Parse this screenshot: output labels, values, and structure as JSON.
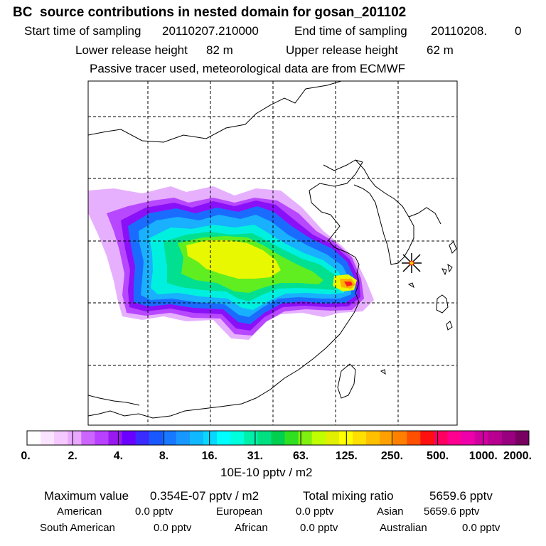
{
  "header": {
    "title": "BC  source contributions in nested domain for gosan_201102",
    "start_label": "Start time of sampling",
    "start_value": "20110207.210000",
    "end_label": "End time of sampling",
    "end_value": "20110208.",
    "end_extra": "0",
    "lower_label": "Lower release height",
    "lower_value": "82 m",
    "upper_label": "Upper release height",
    "upper_value": "62 m",
    "note": "Passive tracer used, meteorological data are from ECMWF"
  },
  "colorbar": {
    "ticks": [
      "0.",
      "2.",
      "4.",
      "8.",
      "16.",
      "31.",
      "63.",
      "125.",
      "250.",
      "500.",
      "1000.",
      "2000."
    ],
    "unit": "10E-10 pptv / m2",
    "colors": [
      "#ffffff",
      "#fbe4ff",
      "#f5c8ff",
      "#eba8ff",
      "#cc66ff",
      "#b840ff",
      "#9a18f0",
      "#6a00ff",
      "#3a2cff",
      "#1a58ff",
      "#1878ff",
      "#1898ff",
      "#10b8ff",
      "#08d8ff",
      "#00ffff",
      "#00ffdd",
      "#00f0aa",
      "#00e080",
      "#00d050",
      "#30e020",
      "#80f010",
      "#c0ff00",
      "#e0f000",
      "#ffff00",
      "#ffe000",
      "#ffc000",
      "#ffa000",
      "#ff8000",
      "#ff5000",
      "#ff1010",
      "#ff0060",
      "#ff0090",
      "#ee00aa",
      "#d000a0",
      "#b80090",
      "#980080",
      "#780060"
    ]
  },
  "summary": {
    "max_label": "Maximum value",
    "max_value": "0.354E-07 pptv / m2",
    "total_label": "Total mixing ratio",
    "total_value": "5659.6 pptv",
    "regions": [
      {
        "name": "American",
        "value": "0.0 pptv"
      },
      {
        "name": "European",
        "value": "0.0 pptv"
      },
      {
        "name": "Asian",
        "value": "5659.6 pptv"
      },
      {
        "name": "South American",
        "value": "0.0 pptv"
      },
      {
        "name": "African",
        "value": "0.0 pptv"
      },
      {
        "name": "Australian",
        "value": "0.0 pptv"
      }
    ]
  },
  "map": {
    "marker": "receptor-star-icon",
    "plume_colors": {
      "outer": "#e6b0ff",
      "violet": "#b848ff",
      "purple": "#8a10f8",
      "blue": "#1a6cff",
      "sky": "#18b0ff",
      "cyan": "#00f0e0",
      "teal": "#00e090",
      "green": "#60ee20",
      "yellow": "#e8f800",
      "orange": "#ffb000",
      "red": "#ff2020"
    }
  }
}
